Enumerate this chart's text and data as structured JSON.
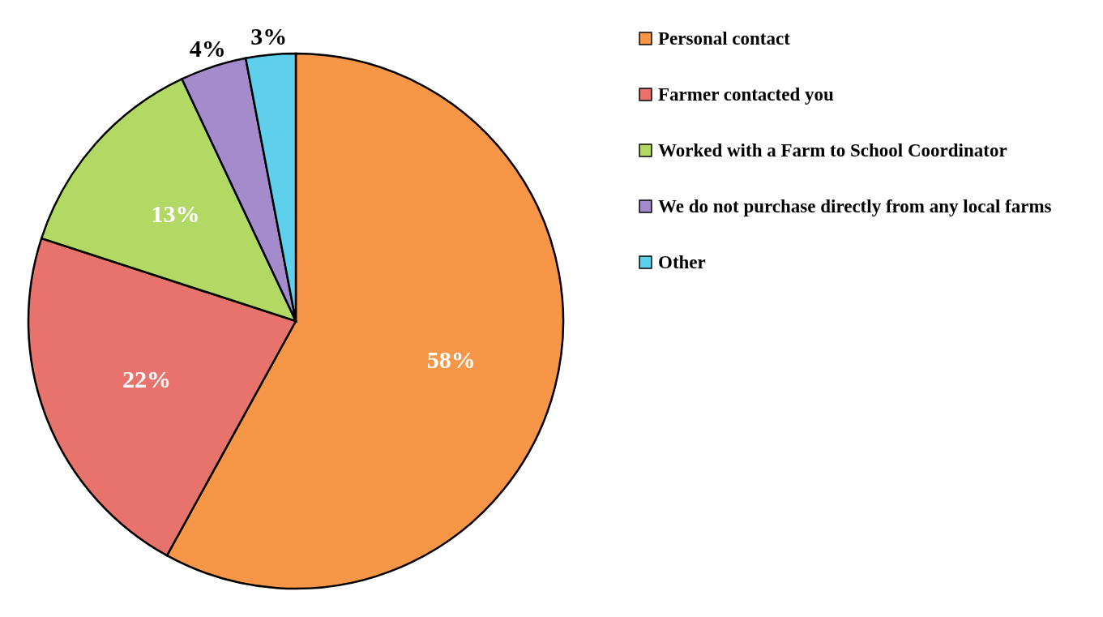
{
  "chart_data": {
    "type": "pie",
    "categories": [
      "Personal contact",
      "Farmer contacted you",
      "Worked with a Farm to School Coordinator",
      "We do not purchase directly from any local farms",
      "Other"
    ],
    "values": [
      58,
      22,
      13,
      4,
      3
    ],
    "colors": [
      "#f79646",
      "#e8736c",
      "#b3d965",
      "#a48ccc",
      "#5fd0ec"
    ],
    "value_labels": [
      "58%",
      "22%",
      "13%",
      "4%",
      "3%"
    ],
    "legend": "right"
  }
}
